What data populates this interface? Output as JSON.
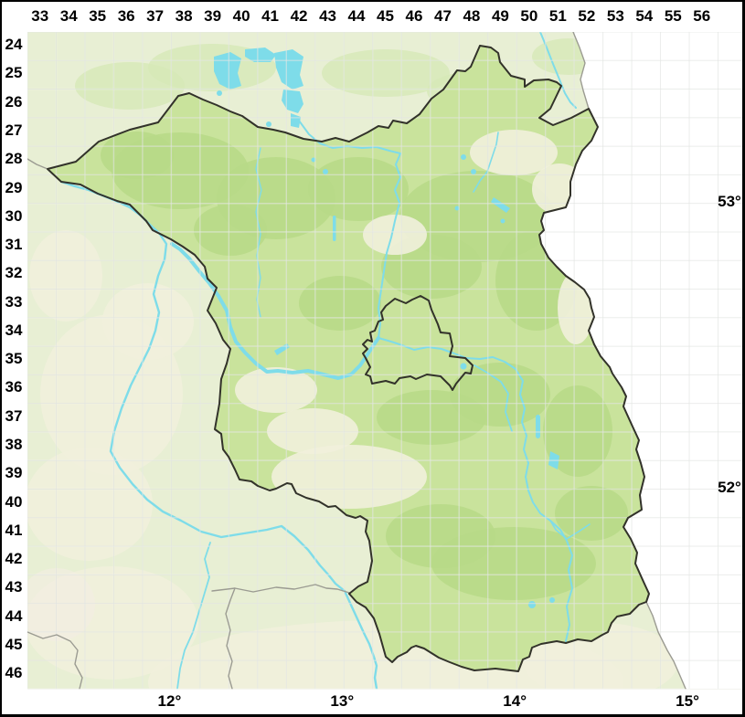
{
  "map": {
    "grid": {
      "column_labels": [
        "33",
        "34",
        "35",
        "36",
        "37",
        "38",
        "39",
        "40",
        "41",
        "42",
        "43",
        "44",
        "45",
        "46",
        "47",
        "48",
        "49",
        "50",
        "51",
        "52",
        "53",
        "54",
        "55",
        "56"
      ],
      "row_labels": [
        "24",
        "25",
        "26",
        "27",
        "28",
        "29",
        "30",
        "31",
        "32",
        "33",
        "34",
        "35",
        "36",
        "37",
        "38",
        "39",
        "40",
        "41",
        "42",
        "43",
        "44",
        "45",
        "46"
      ],
      "latitude_labels": [
        {
          "text": "53°",
          "row_boundary": 6
        },
        {
          "text": "52°",
          "row_boundary": 16
        }
      ],
      "longitude_labels": [
        {
          "text": "12°",
          "col_boundary": 5
        },
        {
          "text": "13°",
          "col_boundary": 11
        },
        {
          "text": "14°",
          "col_boundary": 17
        },
        {
          "text": "15°",
          "col_boundary": 23
        }
      ]
    },
    "colors": {
      "outside_region": "#e8efd4",
      "brandenburg_fill": "#c9e39c",
      "forest_patch": "#b7d987",
      "open_land_patch": "#f1f0db",
      "poland_region": "#ffffff",
      "water": "#7edce9",
      "border_dark": "#32322a",
      "border_gray": "#9b9b92",
      "grid_line_light": "rgba(255,255,255,0.55)",
      "grid_line_dark": "rgba(110,125,110,0.14)",
      "label_color": "#000000",
      "frame_border": "#000000",
      "margin_background": "#ffffff"
    }
  }
}
